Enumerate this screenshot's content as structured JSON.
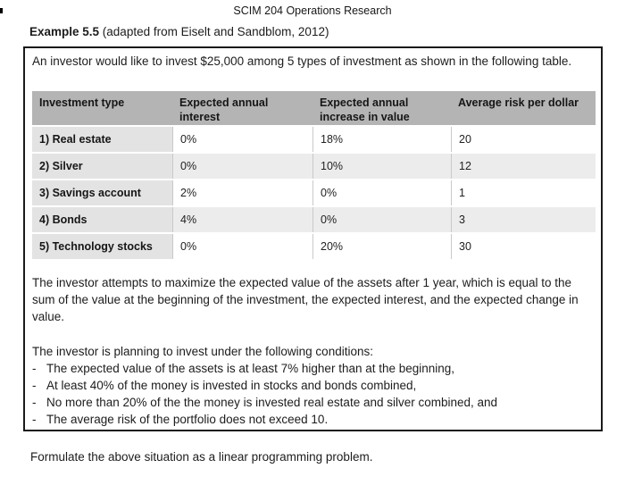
{
  "page": {
    "header": "SCIM 204 Operations Research",
    "example_label": "Example 5.5",
    "example_source": " (adapted from Eiselt and Sandblom, 2012)",
    "footer": "Formulate the above situation as a linear programming problem."
  },
  "problem_box": {
    "intro": "An investor would like to invest $25,000 among 5 types of investment as shown in the following table.",
    "table": {
      "headers": [
        "Investment type",
        "Expected annual interest",
        "Expected annual increase in value",
        "Average risk per dollar"
      ],
      "rows": [
        [
          "1) Real estate",
          "0%",
          "18%",
          "20"
        ],
        [
          "2) Silver",
          "0%",
          "10%",
          "12"
        ],
        [
          "3) Savings account",
          "2%",
          "0%",
          "1"
        ],
        [
          "4) Bonds",
          "4%",
          "0%",
          "3"
        ],
        [
          "5) Technology stocks",
          "0%",
          "20%",
          "30"
        ]
      ]
    },
    "objective_paragraph": "The investor attempts to maximize the expected value of the assets after 1 year, which is equal to the sum of the value at the beginning of the investment, the expected interest, and the expected change in value.",
    "conditions_intro": "The investor is planning to invest under the following conditions:",
    "conditions": [
      "The expected value of the assets is at least 7% higher than at the beginning,",
      "At least 40% of the money is invested in stocks and bonds combined,",
      "No more than 20% of the the money is invested real estate and silver combined, and",
      "The average risk of the portfolio does not exceed 10."
    ]
  },
  "colors": {
    "box_border": "#1a1a1a",
    "table_header_bg": "#b4b4b4",
    "row_label_bg": "#e3e3e3",
    "stripe_row_bg": "#ececec",
    "cell_separator": "#c9c9c9",
    "text": "#1c1c1c"
  }
}
